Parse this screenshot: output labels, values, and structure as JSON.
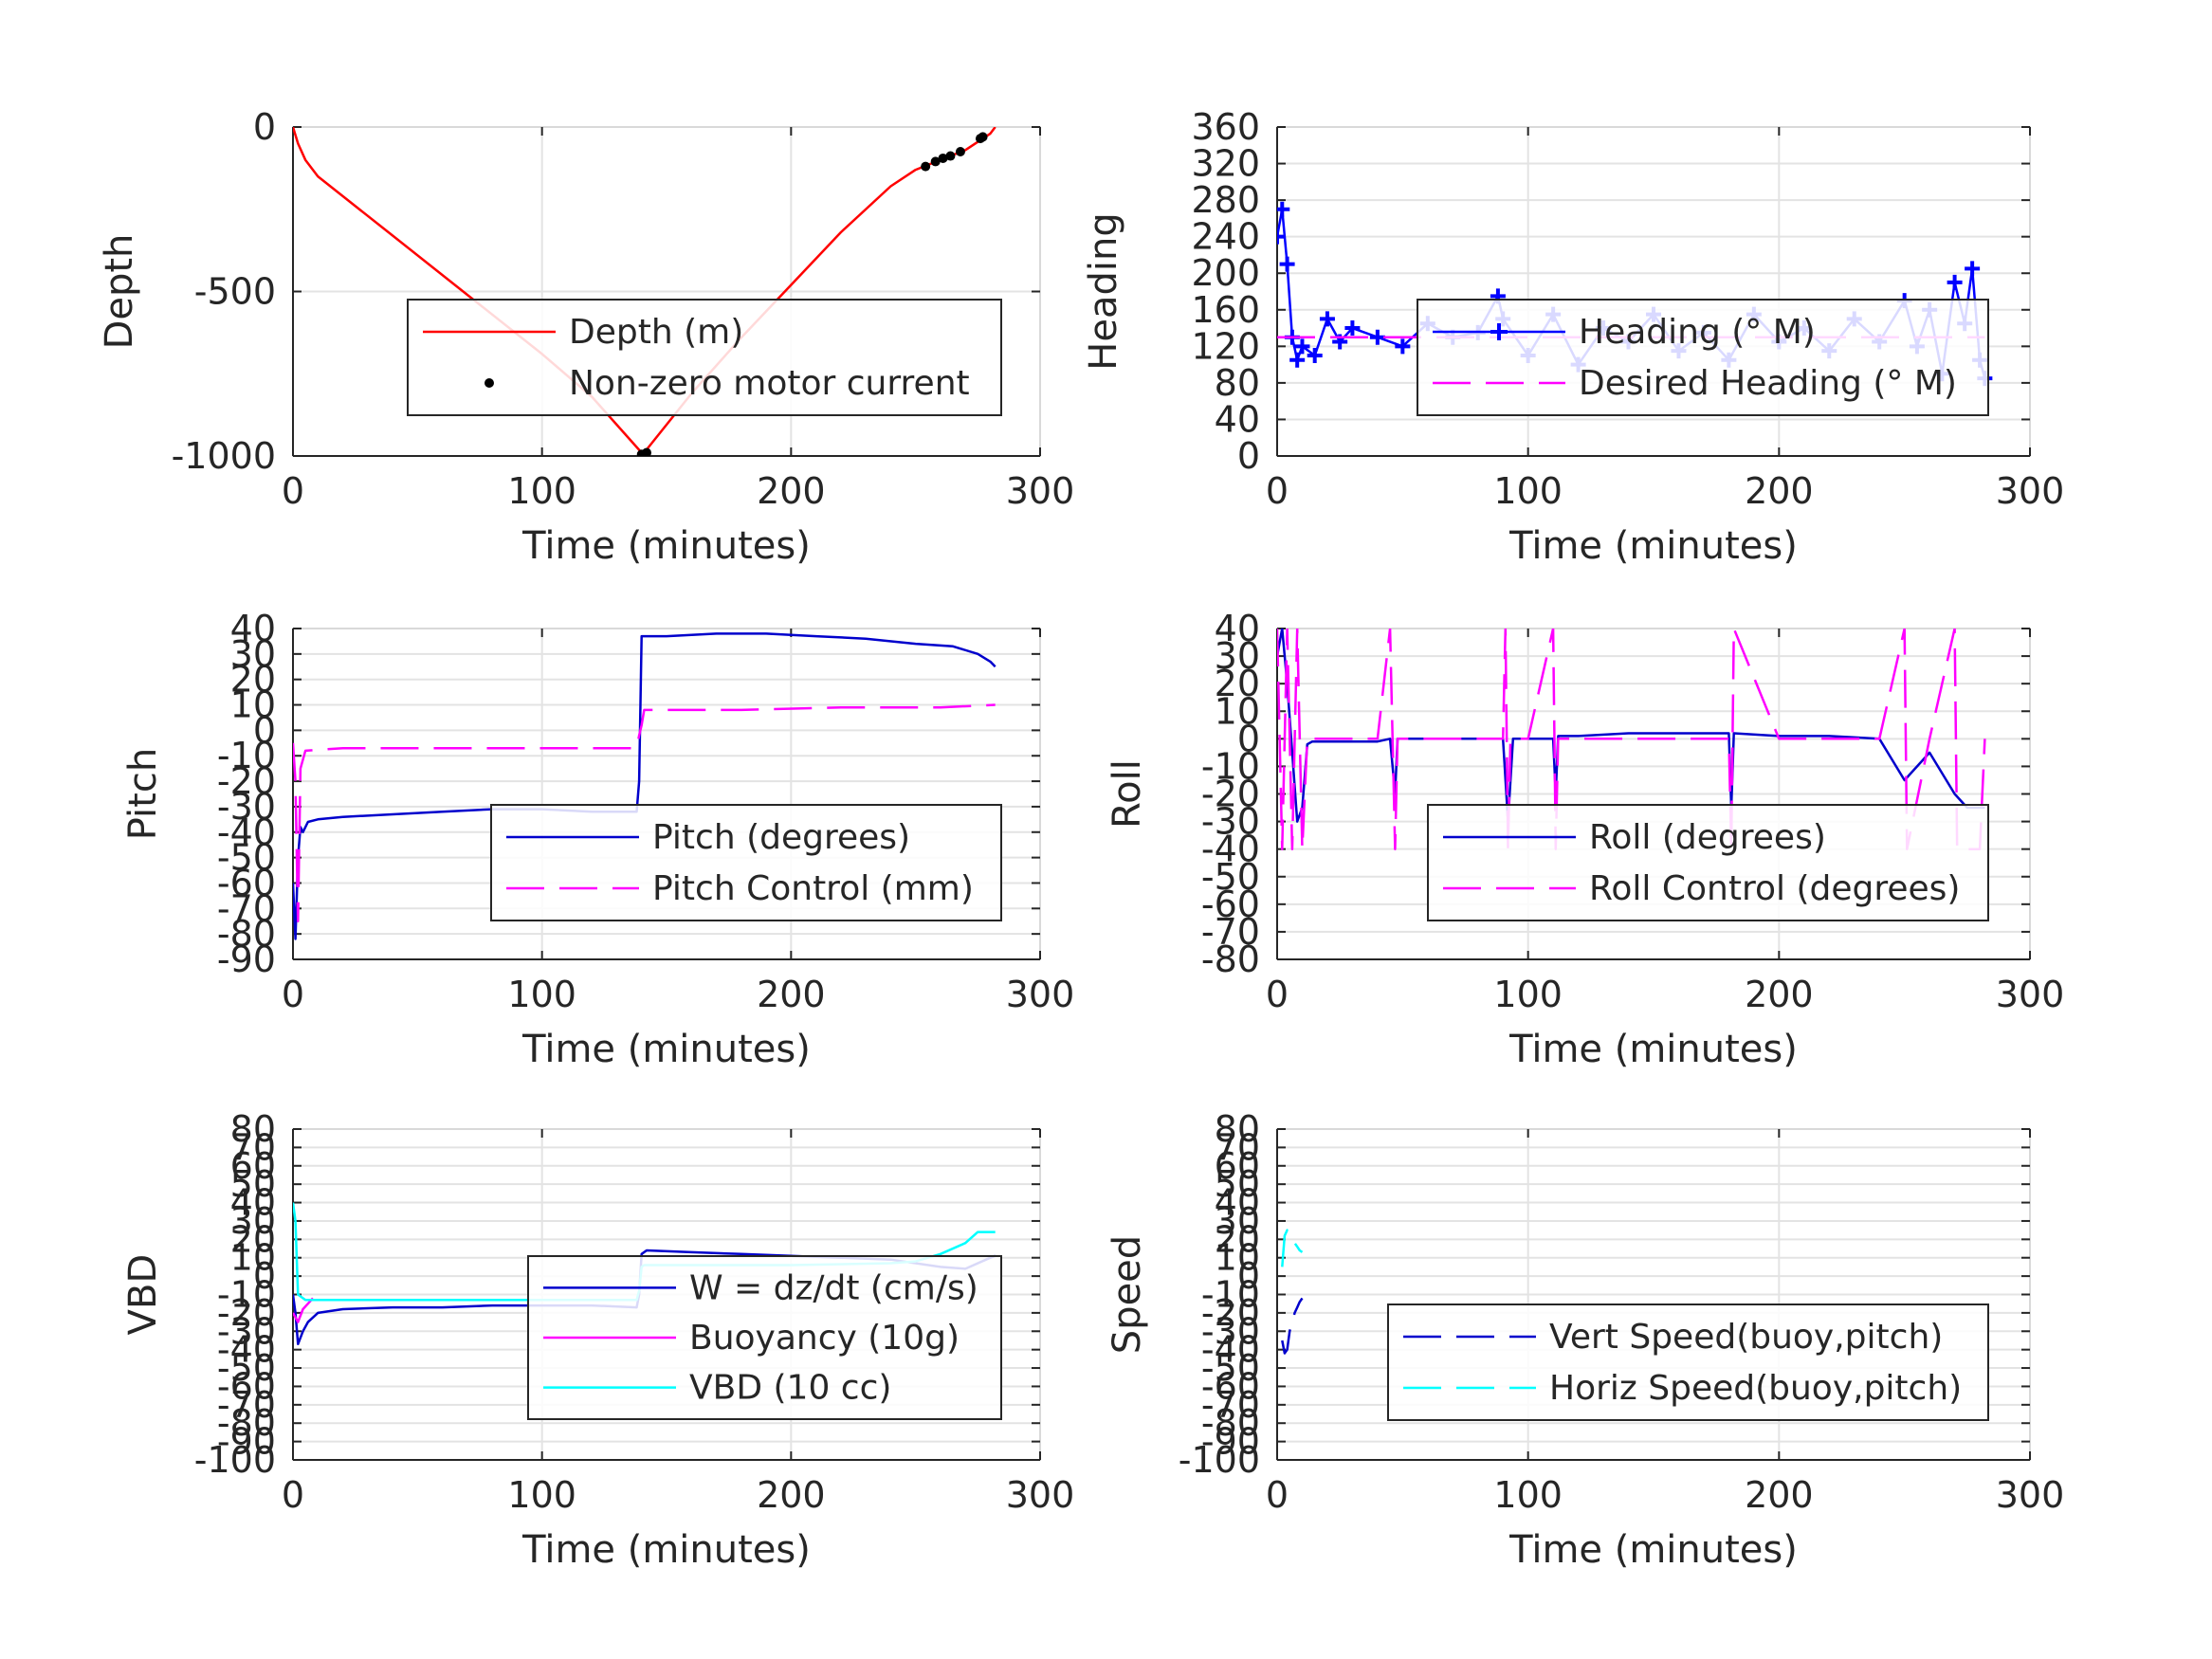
{
  "chart_data": [
    {
      "id": "depth",
      "type": "line",
      "xlabel": "Time (minutes)",
      "ylabel": "Depth",
      "xlim": [
        0,
        300
      ],
      "ylim": [
        -1000,
        0
      ],
      "xticks": [
        0,
        100,
        200,
        300
      ],
      "yticks": [
        -1000,
        -500,
        0
      ],
      "grid": true,
      "legend_position": "lower-right",
      "series": [
        {
          "name": "Depth (m)",
          "color": "#ff0000",
          "style": "solid",
          "marker": "none",
          "x": [
            0,
            2,
            5,
            10,
            20,
            40,
            70,
            100,
            120,
            140,
            141,
            160,
            180,
            200,
            220,
            240,
            250,
            260,
            270,
            280,
            282
          ],
          "y": [
            0,
            -50,
            -100,
            -150,
            -210,
            -330,
            -510,
            -690,
            -820,
            -990,
            -990,
            -810,
            -640,
            -480,
            -320,
            -180,
            -130,
            -100,
            -70,
            -20,
            0
          ]
        },
        {
          "name": "Non-zero motor current",
          "color": "#000000",
          "style": "none",
          "marker": "dot",
          "x": [
            140,
            142,
            254,
            258,
            261,
            264,
            268,
            276,
            277
          ],
          "y": [
            -995,
            -990,
            -120,
            -105,
            -95,
            -88,
            -75,
            -35,
            -30
          ]
        }
      ]
    },
    {
      "id": "heading",
      "type": "line",
      "xlabel": "Time (minutes)",
      "ylabel": "Heading",
      "xlim": [
        0,
        300
      ],
      "ylim": [
        0,
        360
      ],
      "xticks": [
        0,
        100,
        200,
        300
      ],
      "yticks": [
        0,
        40,
        80,
        120,
        160,
        200,
        240,
        280,
        320,
        360
      ],
      "grid": true,
      "legend_position": "lower-right",
      "series": [
        {
          "name": "Heading (° M)",
          "color": "#0000ff",
          "style": "solid",
          "marker": "plus",
          "x": [
            0,
            2,
            4,
            6,
            8,
            10,
            15,
            20,
            25,
            30,
            40,
            50,
            60,
            70,
            80,
            88,
            90,
            100,
            110,
            120,
            130,
            140,
            150,
            160,
            170,
            180,
            190,
            200,
            210,
            220,
            230,
            240,
            250,
            255,
            260,
            265,
            270,
            274,
            277,
            280,
            282
          ],
          "y": [
            240,
            270,
            210,
            130,
            105,
            120,
            110,
            150,
            125,
            140,
            130,
            120,
            145,
            130,
            135,
            175,
            150,
            110,
            155,
            100,
            140,
            125,
            155,
            115,
            135,
            105,
            155,
            125,
            140,
            115,
            150,
            125,
            170,
            120,
            160,
            90,
            190,
            145,
            205,
            105,
            85
          ]
        },
        {
          "name": "Desired Heading (° M)",
          "color": "#ff00ff",
          "style": "dashed",
          "marker": "none",
          "x": [
            0,
            282
          ],
          "y": [
            130,
            130
          ]
        }
      ]
    },
    {
      "id": "pitch",
      "type": "line",
      "xlabel": "Time (minutes)",
      "ylabel": "Pitch",
      "xlim": [
        0,
        300
      ],
      "ylim": [
        -90,
        40
      ],
      "xticks": [
        0,
        100,
        200,
        300
      ],
      "yticks": [
        -90,
        -80,
        -70,
        -60,
        -50,
        -40,
        -30,
        -20,
        -10,
        0,
        10,
        20,
        30,
        40
      ],
      "grid": true,
      "legend_position": "lower-right",
      "series": [
        {
          "name": "Pitch (degrees)",
          "color": "#0000cc",
          "style": "solid",
          "marker": "none",
          "x": [
            0,
            1,
            2,
            3,
            4,
            6,
            10,
            20,
            40,
            60,
            80,
            100,
            120,
            138,
            139,
            140,
            150,
            170,
            190,
            210,
            230,
            250,
            265,
            275,
            280,
            282
          ],
          "y": [
            -60,
            -82,
            -50,
            -38,
            -40,
            -36,
            -35,
            -34,
            -33,
            -32,
            -31,
            -31,
            -32,
            -32,
            -20,
            37,
            37,
            38,
            38,
            37,
            36,
            34,
            33,
            30,
            27,
            25
          ]
        },
        {
          "name": "Pitch Control (mm)",
          "color": "#ff00ff",
          "style": "dashed",
          "marker": "none",
          "x": [
            0,
            1,
            2,
            3,
            5,
            20,
            60,
            100,
            138,
            139,
            140,
            141,
            180,
            220,
            260,
            282
          ],
          "y": [
            -5,
            -20,
            -75,
            -15,
            -8,
            -7,
            -7,
            -7,
            -7,
            -2,
            2,
            8,
            8,
            9,
            9,
            10
          ]
        }
      ]
    },
    {
      "id": "roll",
      "type": "line",
      "xlabel": "Time (minutes)",
      "ylabel": "Roll",
      "xlim": [
        0,
        300
      ],
      "ylim": [
        -80,
        40
      ],
      "xticks": [
        0,
        100,
        200,
        300
      ],
      "yticks": [
        -80,
        -70,
        -60,
        -50,
        -40,
        -30,
        -20,
        -10,
        0,
        10,
        20,
        30,
        40
      ],
      "grid": true,
      "legend_position": "lower-right",
      "series": [
        {
          "name": "Roll (degrees)",
          "color": "#0000cc",
          "style": "solid",
          "marker": "none",
          "x": [
            0,
            2,
            4,
            6,
            8,
            10,
            12,
            14,
            20,
            30,
            40,
            45,
            47,
            48,
            50,
            60,
            80,
            90,
            92,
            94,
            100,
            110,
            111,
            112,
            120,
            140,
            160,
            180,
            181,
            182,
            200,
            220,
            240,
            250,
            260,
            270,
            275,
            280,
            282
          ],
          "y": [
            30,
            40,
            20,
            -5,
            -30,
            -25,
            -2,
            -1,
            -1,
            -1,
            -1,
            0,
            -20,
            0,
            0,
            0,
            0,
            0,
            -30,
            0,
            0,
            0,
            -20,
            1,
            1,
            2,
            2,
            2,
            -25,
            2,
            1,
            1,
            0,
            -15,
            -5,
            -20,
            -25,
            -25,
            -25
          ]
        },
        {
          "name": "Roll Control (degrees)",
          "color": "#ff00ff",
          "style": "dashed",
          "marker": "none",
          "x": [
            0,
            2,
            4,
            6,
            8,
            10,
            12,
            15,
            20,
            30,
            40,
            45,
            47,
            48,
            50,
            60,
            90,
            91,
            92,
            93,
            100,
            110,
            111,
            112,
            120,
            140,
            160,
            180,
            181,
            182,
            200,
            220,
            240,
            250,
            251,
            260,
            270,
            271,
            280,
            282
          ],
          "y": [
            40,
            -40,
            40,
            -40,
            40,
            -40,
            0,
            0,
            0,
            0,
            0,
            40,
            -40,
            0,
            0,
            0,
            0,
            40,
            -40,
            0,
            0,
            40,
            -40,
            0,
            0,
            0,
            0,
            0,
            -40,
            40,
            0,
            0,
            0,
            40,
            -40,
            0,
            40,
            -40,
            -40,
            0
          ]
        }
      ]
    },
    {
      "id": "vbd",
      "type": "line",
      "xlabel": "Time (minutes)",
      "ylabel": "VBD",
      "xlim": [
        0,
        300
      ],
      "ylim": [
        -100,
        80
      ],
      "xticks": [
        0,
        100,
        200,
        300
      ],
      "yticks": [
        -100,
        -90,
        -80,
        -70,
        -60,
        -50,
        -40,
        -30,
        -20,
        -10,
        0,
        10,
        20,
        30,
        40,
        50,
        60,
        70,
        80
      ],
      "grid": true,
      "legend_position": "lower-right",
      "series": [
        {
          "name": "W = dz/dt (cm/s)",
          "color": "#0000cc",
          "style": "solid",
          "marker": "none",
          "x": [
            0,
            1,
            2,
            4,
            6,
            10,
            20,
            40,
            60,
            80,
            100,
            120,
            138,
            139,
            140,
            142,
            160,
            180,
            200,
            220,
            240,
            260,
            270,
            280,
            282
          ],
          "y": [
            -10,
            -20,
            -37,
            -30,
            -25,
            -20,
            -18,
            -17,
            -17,
            -16,
            -16,
            -16,
            -17,
            -10,
            12,
            14,
            13,
            12,
            11,
            10,
            9,
            5,
            4,
            10,
            11
          ]
        },
        {
          "name": "Buoyancy (10g)",
          "color": "#ff00ff",
          "style": "solid",
          "marker": "none",
          "x": [
            0,
            2,
            4,
            6,
            8
          ],
          "y": [
            -20,
            -25,
            -18,
            -15,
            -12
          ]
        },
        {
          "name": "VBD (10 cc)",
          "color": "#00ffff",
          "style": "solid",
          "marker": "none",
          "x": [
            0,
            1,
            2,
            5,
            10,
            50,
            100,
            138,
            139,
            140,
            141,
            200,
            240,
            250,
            260,
            270,
            275,
            282
          ],
          "y": [
            40,
            30,
            -10,
            -13,
            -13,
            -13,
            -13,
            -13,
            -8,
            5,
            6,
            6,
            7,
            8,
            12,
            18,
            24,
            24
          ]
        }
      ]
    },
    {
      "id": "speed",
      "type": "line",
      "xlabel": "Time (minutes)",
      "ylabel": "Speed",
      "xlim": [
        0,
        300
      ],
      "ylim": [
        -100,
        80
      ],
      "xticks": [
        0,
        100,
        200,
        300
      ],
      "yticks": [
        -100,
        -90,
        -80,
        -70,
        -60,
        -50,
        -40,
        -30,
        -20,
        -10,
        0,
        10,
        20,
        30,
        40,
        50,
        60,
        70,
        80
      ],
      "grid": true,
      "legend_position": "lower-right",
      "series": [
        {
          "name": "Vert Speed(buoy,pitch)",
          "color": "#0000cc",
          "style": "dashed",
          "marker": "none",
          "x": [
            2,
            3,
            4,
            5,
            6,
            7,
            8,
            9,
            10
          ],
          "y": [
            -35,
            -42,
            -40,
            -30,
            -25,
            -20,
            -17,
            -14,
            -12
          ]
        },
        {
          "name": "Horiz Speed(buoy,pitch)",
          "color": "#00ffff",
          "style": "dashed",
          "marker": "none",
          "x": [
            2,
            3,
            4,
            5,
            6,
            7,
            8,
            9,
            10
          ],
          "y": [
            5,
            22,
            25,
            22,
            20,
            18,
            16,
            14,
            13
          ]
        }
      ]
    }
  ]
}
